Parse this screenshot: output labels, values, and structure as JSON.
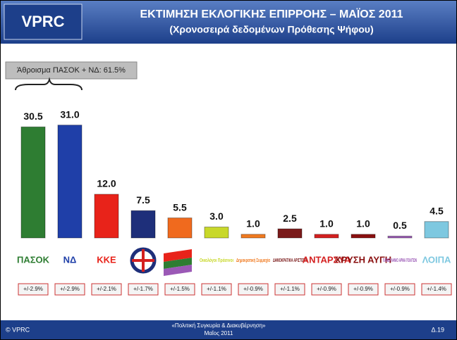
{
  "logo": "VPRC",
  "chart_data": {
    "type": "bar",
    "title": "ΕΚΤΙΜΗΣΗ ΕΚΛΟΓΙΚΗΣ ΕΠΙΡΡΟΗΣ – ΜΑΪΟΣ 2011",
    "subtitle": "(Χρονοσειρά δεδομένων Πρόθεσης Ψήφου)",
    "annotation": "Άθροισμα ΠΑΣΟΚ + ΝΔ: 61.5%",
    "categories": [
      "ΠΑΣΟΚ",
      "ΝΔ",
      "ΚΚΕ",
      null,
      null,
      "Οικολόγοι Πράσινοι",
      "Δημοκρατική Συμμαχία",
      "ΔΗΜΟΚΡΑΤΙΚΗ ΑΡΙΣΤΕΡΑ",
      "ΑΝΤΑΡΣΥΑ",
      "ΧΡΥΣΗ ΑΥΓΗ",
      "ΠΑΝΕΛΛΗΝΙΟ ΑΡΜΑ ΠΟΛΙΤΩΝ",
      "ΛΟΙΠΑ"
    ],
    "values": [
      30.5,
      31.0,
      12.0,
      7.5,
      5.5,
      3.0,
      1.0,
      2.5,
      1.0,
      1.0,
      0.5,
      4.5
    ],
    "value_labels": [
      "30.5",
      "31.0",
      "12.0",
      "7.5",
      "5.5",
      "3.0",
      "1.0",
      "2.5",
      "1.0",
      "1.0",
      "0.5",
      "4.5"
    ],
    "colors": [
      "#2e7d32",
      "#1f3fa8",
      "#e8231a",
      "#1e2f7a",
      "#f06a1e",
      "#c8d82a",
      "#f07a20",
      "#7a1a1a",
      "#d42020",
      "#8a1010",
      "#9b59b6",
      "#7ec8e0"
    ],
    "errors": [
      "+/-2.9%",
      "+/-2.9%",
      "+/-2.1%",
      "+/-1.7%",
      "+/-1.5%",
      "+/-1.1%",
      "+/-0.9%",
      "+/-1.1%",
      "+/-0.9%",
      "+/-0.9%",
      "+/-0.9%",
      "+/-1.4%"
    ],
    "ylim": [
      0,
      35
    ]
  },
  "footer": {
    "copyright": "© VPRC",
    "report": "«Πολιτική Συγκυρία & Διακυβέρνηση»",
    "date": "Μαΐος 2011",
    "page": "Δ.19"
  }
}
